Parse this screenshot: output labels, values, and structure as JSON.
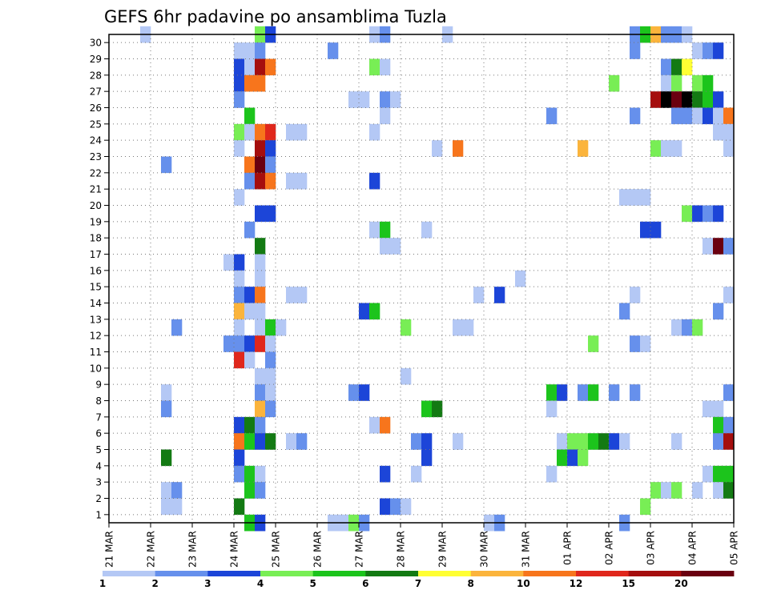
{
  "chart_data": {
    "type": "heatmap",
    "title": "GEFS 6hr padavine po ansamblima Tuzla",
    "x_tick_labels": [
      "21 MAR",
      "22 MAR",
      "23 MAR",
      "24 MAR",
      "25 MAR",
      "26 MAR",
      "27 MAR",
      "28 MAR",
      "29 MAR",
      "30 MAR",
      "31 MAR",
      "01 APR",
      "02 APR",
      "03 APR",
      "04 APR",
      "05 APR"
    ],
    "y_tick_labels": [
      "1",
      "2",
      "3",
      "4",
      "5",
      "6",
      "7",
      "8",
      "9",
      "10",
      "11",
      "12",
      "13",
      "14",
      "15",
      "16",
      "17",
      "18",
      "19",
      "20",
      "21",
      "22",
      "23",
      "24",
      "25",
      "26",
      "27",
      "28",
      "29",
      "30"
    ],
    "x_range_days": [
      0,
      15
    ],
    "y_range_members": [
      0,
      30
    ],
    "steps_per_day": 4,
    "grid": "dotted",
    "colorbar": {
      "position": "bottom",
      "labels": [
        "1",
        "2",
        "3",
        "4",
        "5",
        "6",
        "7",
        "8",
        "10",
        "12",
        "15",
        "20"
      ],
      "colors": [
        "#b4c8f5",
        "#6690ec",
        "#1c45d8",
        "#78ee55",
        "#1cc41c",
        "#137a13",
        "#ffff33",
        "#fbb43c",
        "#f7751c",
        "#e0271c",
        "#a50e0e",
        "#6a0010"
      ]
    },
    "cells": [
      [
        30,
        3,
        1
      ],
      [
        30,
        14,
        4
      ],
      [
        30,
        15,
        3
      ],
      [
        30,
        25,
        1
      ],
      [
        30,
        26,
        2
      ],
      [
        30,
        32,
        1
      ],
      [
        30,
        50,
        2
      ],
      [
        30,
        51,
        5
      ],
      [
        30,
        52,
        8
      ],
      [
        30,
        53,
        2
      ],
      [
        30,
        54,
        2
      ],
      [
        30,
        55,
        1
      ],
      [
        29,
        12,
        1
      ],
      [
        29,
        13,
        1
      ],
      [
        29,
        14,
        2
      ],
      [
        29,
        21,
        2
      ],
      [
        29,
        50,
        2
      ],
      [
        29,
        56,
        1
      ],
      [
        29,
        57,
        2
      ],
      [
        29,
        58,
        3
      ],
      [
        28,
        12,
        3
      ],
      [
        28,
        13,
        1
      ],
      [
        28,
        14,
        11
      ],
      [
        28,
        15,
        9
      ],
      [
        28,
        25,
        4
      ],
      [
        28,
        26,
        1
      ],
      [
        28,
        53,
        2
      ],
      [
        28,
        54,
        6
      ],
      [
        28,
        55,
        7
      ],
      [
        27,
        12,
        3
      ],
      [
        27,
        13,
        9
      ],
      [
        27,
        14,
        9
      ],
      [
        27,
        48,
        4
      ],
      [
        27,
        53,
        1
      ],
      [
        27,
        54,
        4
      ],
      [
        27,
        56,
        4
      ],
      [
        27,
        57,
        5
      ],
      [
        26,
        12,
        2
      ],
      [
        26,
        23,
        1
      ],
      [
        26,
        24,
        1
      ],
      [
        26,
        26,
        2
      ],
      [
        26,
        27,
        1
      ],
      [
        26,
        52,
        11
      ],
      [
        26,
        53,
        13
      ],
      [
        26,
        54,
        12
      ],
      [
        26,
        55,
        13
      ],
      [
        26,
        56,
        6
      ],
      [
        26,
        57,
        5
      ],
      [
        26,
        58,
        3
      ],
      [
        25,
        13,
        5
      ],
      [
        25,
        26,
        1
      ],
      [
        25,
        42,
        2
      ],
      [
        25,
        50,
        2
      ],
      [
        25,
        54,
        2
      ],
      [
        25,
        55,
        2
      ],
      [
        25,
        56,
        1
      ],
      [
        25,
        57,
        3
      ],
      [
        25,
        58,
        1
      ],
      [
        25,
        59,
        9
      ],
      [
        24,
        12,
        4
      ],
      [
        24,
        13,
        1
      ],
      [
        24,
        14,
        9
      ],
      [
        24,
        15,
        10
      ],
      [
        24,
        17,
        1
      ],
      [
        24,
        18,
        1
      ],
      [
        24,
        25,
        1
      ],
      [
        24,
        58,
        1
      ],
      [
        24,
        59,
        1
      ],
      [
        23,
        12,
        1
      ],
      [
        23,
        14,
        11
      ],
      [
        23,
        15,
        3
      ],
      [
        23,
        31,
        1
      ],
      [
        23,
        33,
        9
      ],
      [
        23,
        45,
        8
      ],
      [
        23,
        52,
        4
      ],
      [
        23,
        53,
        1
      ],
      [
        23,
        54,
        1
      ],
      [
        23,
        59,
        1
      ],
      [
        22,
        5,
        2
      ],
      [
        22,
        13,
        9
      ],
      [
        22,
        14,
        12
      ],
      [
        22,
        15,
        2
      ],
      [
        21,
        13,
        2
      ],
      [
        21,
        14,
        11
      ],
      [
        21,
        15,
        9
      ],
      [
        21,
        17,
        1
      ],
      [
        21,
        18,
        1
      ],
      [
        21,
        25,
        3
      ],
      [
        20,
        12,
        1
      ],
      [
        20,
        49,
        1
      ],
      [
        20,
        50,
        1
      ],
      [
        20,
        51,
        1
      ],
      [
        19,
        14,
        3
      ],
      [
        19,
        15,
        3
      ],
      [
        19,
        55,
        4
      ],
      [
        19,
        56,
        3
      ],
      [
        19,
        57,
        2
      ],
      [
        19,
        58,
        3
      ],
      [
        18,
        13,
        2
      ],
      [
        18,
        25,
        1
      ],
      [
        18,
        26,
        5
      ],
      [
        18,
        30,
        1
      ],
      [
        18,
        51,
        3
      ],
      [
        18,
        52,
        3
      ],
      [
        17,
        14,
        6
      ],
      [
        17,
        26,
        1
      ],
      [
        17,
        27,
        1
      ],
      [
        17,
        57,
        1
      ],
      [
        17,
        58,
        12
      ],
      [
        17,
        59,
        2
      ],
      [
        16,
        11,
        1
      ],
      [
        16,
        12,
        3
      ],
      [
        16,
        14,
        1
      ],
      [
        15,
        12,
        1
      ],
      [
        15,
        14,
        1
      ],
      [
        15,
        39,
        1
      ],
      [
        14,
        12,
        2
      ],
      [
        14,
        13,
        3
      ],
      [
        14,
        14,
        9
      ],
      [
        14,
        17,
        1
      ],
      [
        14,
        18,
        1
      ],
      [
        14,
        35,
        1
      ],
      [
        14,
        37,
        3
      ],
      [
        14,
        50,
        1
      ],
      [
        14,
        59,
        1
      ],
      [
        13,
        12,
        8
      ],
      [
        13,
        13,
        1
      ],
      [
        13,
        14,
        1
      ],
      [
        13,
        24,
        3
      ],
      [
        13,
        25,
        5
      ],
      [
        13,
        49,
        2
      ],
      [
        13,
        58,
        2
      ],
      [
        12,
        6,
        2
      ],
      [
        12,
        12,
        1
      ],
      [
        12,
        14,
        1
      ],
      [
        12,
        15,
        5
      ],
      [
        12,
        16,
        1
      ],
      [
        12,
        28,
        4
      ],
      [
        12,
        33,
        1
      ],
      [
        12,
        34,
        1
      ],
      [
        12,
        54,
        1
      ],
      [
        12,
        55,
        2
      ],
      [
        12,
        56,
        4
      ],
      [
        11,
        11,
        2
      ],
      [
        11,
        12,
        2
      ],
      [
        11,
        13,
        3
      ],
      [
        11,
        14,
        10
      ],
      [
        11,
        15,
        1
      ],
      [
        11,
        46,
        4
      ],
      [
        11,
        50,
        2
      ],
      [
        11,
        51,
        1
      ],
      [
        10,
        12,
        10
      ],
      [
        10,
        13,
        1
      ],
      [
        10,
        15,
        2
      ],
      [
        9,
        14,
        1
      ],
      [
        9,
        15,
        1
      ],
      [
        9,
        28,
        1
      ],
      [
        8,
        5,
        1
      ],
      [
        8,
        14,
        2
      ],
      [
        8,
        15,
        1
      ],
      [
        8,
        23,
        2
      ],
      [
        8,
        24,
        3
      ],
      [
        8,
        42,
        5
      ],
      [
        8,
        43,
        3
      ],
      [
        8,
        45,
        2
      ],
      [
        8,
        46,
        5
      ],
      [
        8,
        48,
        2
      ],
      [
        8,
        50,
        2
      ],
      [
        8,
        59,
        2
      ],
      [
        7,
        5,
        2
      ],
      [
        7,
        14,
        8
      ],
      [
        7,
        15,
        2
      ],
      [
        7,
        30,
        5
      ],
      [
        7,
        31,
        6
      ],
      [
        7,
        42,
        1
      ],
      [
        7,
        57,
        1
      ],
      [
        7,
        58,
        1
      ],
      [
        6,
        12,
        3
      ],
      [
        6,
        13,
        6
      ],
      [
        6,
        14,
        2
      ],
      [
        6,
        25,
        1
      ],
      [
        6,
        26,
        9
      ],
      [
        6,
        58,
        5
      ],
      [
        6,
        59,
        2
      ],
      [
        5,
        12,
        9
      ],
      [
        5,
        13,
        5
      ],
      [
        5,
        14,
        3
      ],
      [
        5,
        15,
        6
      ],
      [
        5,
        17,
        1
      ],
      [
        5,
        18,
        2
      ],
      [
        5,
        29,
        2
      ],
      [
        5,
        30,
        3
      ],
      [
        5,
        33,
        1
      ],
      [
        5,
        43,
        1
      ],
      [
        5,
        44,
        4
      ],
      [
        5,
        45,
        4
      ],
      [
        5,
        46,
        5
      ],
      [
        5,
        47,
        6
      ],
      [
        5,
        48,
        3
      ],
      [
        5,
        49,
        1
      ],
      [
        5,
        54,
        1
      ],
      [
        5,
        58,
        2
      ],
      [
        5,
        59,
        11
      ],
      [
        4,
        5,
        6
      ],
      [
        4,
        12,
        3
      ],
      [
        4,
        30,
        3
      ],
      [
        4,
        43,
        5
      ],
      [
        4,
        44,
        3
      ],
      [
        4,
        45,
        4
      ],
      [
        3,
        12,
        2
      ],
      [
        3,
        13,
        5
      ],
      [
        3,
        14,
        1
      ],
      [
        3,
        26,
        3
      ],
      [
        3,
        29,
        1
      ],
      [
        3,
        42,
        1
      ],
      [
        3,
        57,
        1
      ],
      [
        3,
        58,
        5
      ],
      [
        3,
        59,
        5
      ],
      [
        2,
        5,
        1
      ],
      [
        2,
        6,
        2
      ],
      [
        2,
        13,
        5
      ],
      [
        2,
        14,
        2
      ],
      [
        2,
        52,
        4
      ],
      [
        2,
        53,
        1
      ],
      [
        2,
        54,
        4
      ],
      [
        2,
        56,
        1
      ],
      [
        2,
        58,
        1
      ],
      [
        2,
        59,
        6
      ],
      [
        1,
        5,
        1
      ],
      [
        1,
        6,
        1
      ],
      [
        1,
        12,
        6
      ],
      [
        1,
        26,
        3
      ],
      [
        1,
        27,
        2
      ],
      [
        1,
        28,
        1
      ],
      [
        1,
        51,
        4
      ],
      [
        0,
        13,
        5
      ],
      [
        0,
        14,
        3
      ],
      [
        0,
        21,
        1
      ],
      [
        0,
        22,
        1
      ],
      [
        0,
        23,
        4
      ],
      [
        0,
        24,
        2
      ],
      [
        0,
        36,
        1
      ],
      [
        0,
        37,
        2
      ],
      [
        0,
        49,
        2
      ]
    ]
  }
}
